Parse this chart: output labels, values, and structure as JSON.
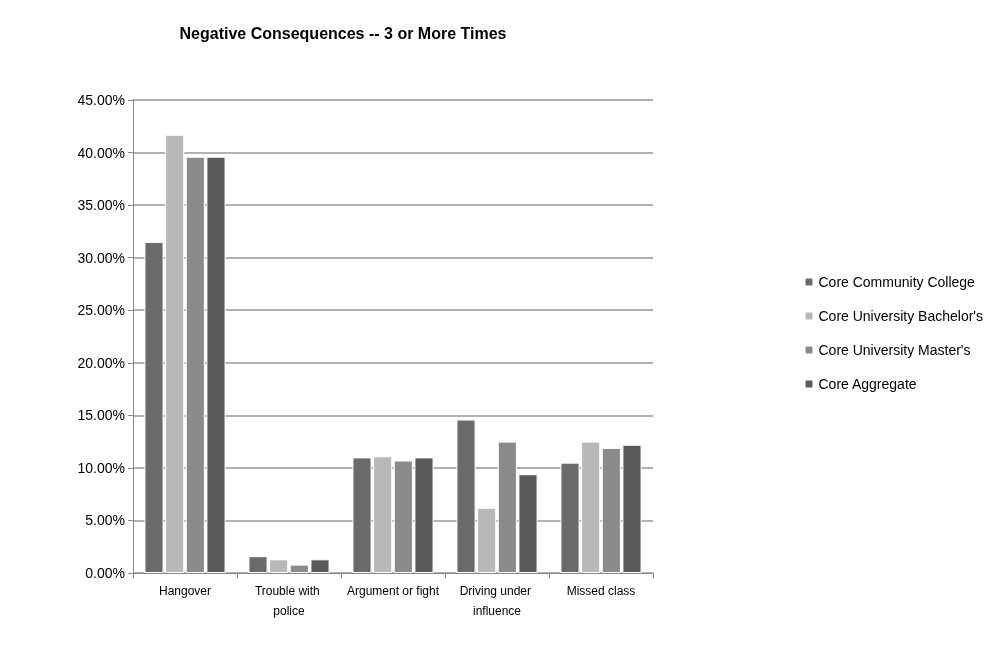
{
  "chart_data": {
    "type": "bar",
    "title": "Negative Consequences -- 3 or More Times",
    "categories": [
      "Hangover",
      "Trouble with police",
      "Argument or fight",
      "Driving under influence",
      "Missed class"
    ],
    "series": [
      {
        "name": "Core Community College",
        "color": "#6b6b6b",
        "values": [
          31.5,
          1.6,
          11.0,
          14.6,
          10.5
        ]
      },
      {
        "name": "Core University Bachelor's",
        "color": "#b8b8b8",
        "values": [
          41.7,
          1.3,
          11.1,
          6.2,
          12.5
        ]
      },
      {
        "name": "Core University Master's",
        "color": "#8a8a8a",
        "values": [
          39.6,
          0.8,
          10.7,
          12.5,
          11.9
        ]
      },
      {
        "name": "Core Aggregate",
        "color": "#5a5a5a",
        "values": [
          39.6,
          1.3,
          11.0,
          9.4,
          12.2
        ]
      }
    ],
    "ylim": [
      0,
      45
    ],
    "yticks": [
      {
        "value": 0,
        "label": "0.00%"
      },
      {
        "value": 5,
        "label": "5.00%"
      },
      {
        "value": 10,
        "label": "10.00%"
      },
      {
        "value": 15,
        "label": "15.00%"
      },
      {
        "value": 20,
        "label": "20.00%"
      },
      {
        "value": 25,
        "label": "25.00%"
      },
      {
        "value": 30,
        "label": "30.00%"
      },
      {
        "value": 35,
        "label": "35.00%"
      },
      {
        "value": 40,
        "label": "40.00%"
      },
      {
        "value": 45,
        "label": "45.00%"
      }
    ],
    "grid": "y",
    "legend": "right"
  }
}
